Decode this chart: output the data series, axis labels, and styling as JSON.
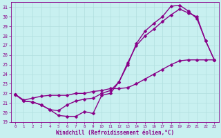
{
  "xlabel": "Windchill (Refroidissement éolien,°C)",
  "bg_color": "#c8f0f0",
  "line_color": "#880088",
  "grid_color": "#b0dede",
  "xlim": [
    -0.5,
    23.5
  ],
  "ylim": [
    19,
    31.5
  ],
  "xticks": [
    0,
    1,
    2,
    3,
    4,
    5,
    6,
    7,
    8,
    9,
    10,
    11,
    12,
    13,
    14,
    15,
    16,
    17,
    18,
    19,
    20,
    21,
    22,
    23
  ],
  "yticks": [
    19,
    20,
    21,
    22,
    23,
    24,
    25,
    26,
    27,
    28,
    29,
    30,
    31
  ],
  "line1_x": [
    0,
    1,
    2,
    3,
    4,
    5,
    6,
    7,
    8,
    9,
    10,
    11,
    12,
    13,
    14,
    15,
    16,
    17,
    18,
    19,
    20,
    21,
    22,
    23
  ],
  "line1_y": [
    21.9,
    21.2,
    21.1,
    20.8,
    20.3,
    19.7,
    19.6,
    19.6,
    20.1,
    19.9,
    21.8,
    22.0,
    23.2,
    25.2,
    27.0,
    28.0,
    28.7,
    29.5,
    30.2,
    30.8,
    30.4,
    30.0,
    27.5,
    25.5
  ],
  "line2_x": [
    0,
    1,
    2,
    3,
    4,
    5,
    6,
    7,
    8,
    9,
    10,
    11,
    12,
    13,
    14,
    15,
    16,
    17,
    18,
    19,
    20,
    21,
    22,
    23
  ],
  "line2_y": [
    21.9,
    21.3,
    21.5,
    21.7,
    21.8,
    21.8,
    21.8,
    22.0,
    22.0,
    22.2,
    22.3,
    22.5,
    22.5,
    22.6,
    23.0,
    23.5,
    24.0,
    24.5,
    25.0,
    25.4,
    25.5,
    25.5,
    25.5,
    25.5
  ],
  "line3_x": [
    0,
    1,
    2,
    3,
    4,
    5,
    6,
    7,
    8,
    9,
    10,
    11,
    12,
    13,
    14,
    15,
    16,
    17,
    18,
    19,
    20,
    21,
    22,
    23
  ],
  "line3_y": [
    21.9,
    21.2,
    21.1,
    20.8,
    20.3,
    20.2,
    20.8,
    21.2,
    21.4,
    21.5,
    22.0,
    22.3,
    23.2,
    25.0,
    27.2,
    28.5,
    29.3,
    30.0,
    31.1,
    31.2,
    30.6,
    29.8,
    27.5,
    25.5
  ],
  "marker": "D",
  "markersize": 2.5,
  "linewidth": 1.0
}
